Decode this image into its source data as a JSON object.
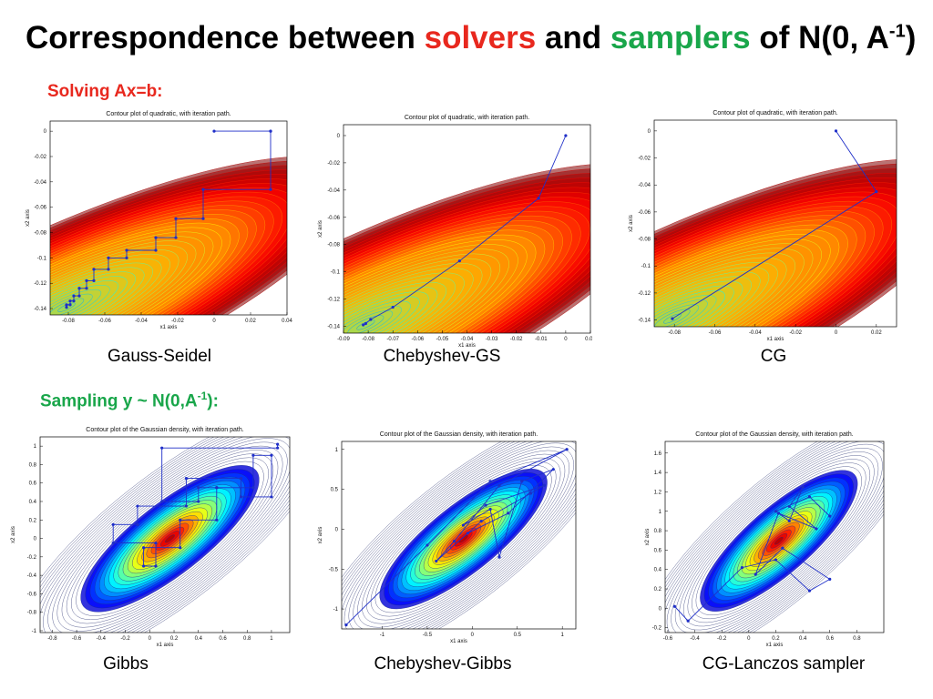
{
  "title": {
    "prefix": "Correspondence between ",
    "solvers": "solvers",
    "middle": " and ",
    "samplers": "samplers",
    "suffix": " of N(0, A",
    "sup": "-1",
    "close": ")",
    "colors": {
      "solvers": "#e8281e",
      "samplers": "#19a64a"
    }
  },
  "sections": {
    "solving": "Solving  Ax=b:",
    "sampling_prefix": "Sampling  y ~ N(0,A",
    "sampling_sup": "-1",
    "sampling_suffix": "):"
  },
  "captions": {
    "gauss_seidel": "Gauss-Seidel",
    "chebyshev_gs": "Chebyshev-GS",
    "cg": "CG",
    "gibbs": "Gibbs",
    "chebyshev_gibbs": "Chebyshev-Gibbs",
    "cg_lanczos": "CG-Lanczos sampler"
  },
  "panels": [
    {
      "id": "gs",
      "title": "Contour plot of quadratic, with iteration path.",
      "xlabel": "x1 axis",
      "ylabel": "x2 axis",
      "kind": "quadratic",
      "xlim": [
        -0.09,
        0.04
      ],
      "ylim": [
        -0.145,
        0.008
      ],
      "xticks": [
        "-0.08",
        "-0.06",
        "-0.04",
        "-0.02",
        "0",
        "0.02",
        "0.04"
      ],
      "xtick_vals": [
        -0.08,
        -0.06,
        -0.04,
        -0.02,
        0,
        0.02,
        0.04
      ],
      "yticks": [
        "0",
        "-0.02",
        "-0.04",
        "-0.06",
        "-0.08",
        "-0.1",
        "-0.12",
        "-0.14"
      ],
      "ytick_vals": [
        0,
        -0.02,
        -0.04,
        -0.06,
        -0.08,
        -0.1,
        -0.12,
        -0.14
      ],
      "path": [
        [
          0.031,
          0
        ],
        [
          0,
          0
        ],
        [
          0.031,
          0
        ],
        [
          0.031,
          -0.046
        ],
        [
          -0.006,
          -0.046
        ],
        [
          -0.006,
          -0.069
        ],
        [
          -0.021,
          -0.069
        ],
        [
          -0.021,
          -0.084
        ],
        [
          -0.032,
          -0.084
        ],
        [
          -0.032,
          -0.094
        ],
        [
          -0.048,
          -0.094
        ],
        [
          -0.048,
          -0.1
        ],
        [
          -0.058,
          -0.1
        ],
        [
          -0.058,
          -0.109
        ],
        [
          -0.066,
          -0.109
        ],
        [
          -0.066,
          -0.118
        ],
        [
          -0.07,
          -0.118
        ],
        [
          -0.07,
          -0.124
        ],
        [
          -0.074,
          -0.124
        ],
        [
          -0.074,
          -0.13
        ],
        [
          -0.077,
          -0.13
        ],
        [
          -0.077,
          -0.134
        ],
        [
          -0.079,
          -0.134
        ],
        [
          -0.079,
          -0.137
        ],
        [
          -0.081,
          -0.137
        ],
        [
          -0.081,
          -0.139
        ]
      ]
    },
    {
      "id": "chgs",
      "title": "Contour plot of quadratic, with iteration path.",
      "xlabel": "x1 axis",
      "ylabel": "x2 axis",
      "kind": "quadratic",
      "xlim": [
        -0.09,
        0.01
      ],
      "ylim": [
        -0.145,
        0.008
      ],
      "xticks": [
        "-0.09",
        "-0.08",
        "-0.07",
        "-0.06",
        "-0.05",
        "-0.04",
        "-0.03",
        "-0.02",
        "-0.01",
        "0",
        "0.01"
      ],
      "xtick_vals": [
        -0.09,
        -0.08,
        -0.07,
        -0.06,
        -0.05,
        -0.04,
        -0.03,
        -0.02,
        -0.01,
        0,
        0.01
      ],
      "yticks": [
        "0",
        "-0.02",
        "-0.04",
        "-0.06",
        "-0.08",
        "-0.1",
        "-0.12",
        "-0.14"
      ],
      "ytick_vals": [
        0,
        -0.02,
        -0.04,
        -0.06,
        -0.08,
        -0.1,
        -0.12,
        -0.14
      ],
      "path": [
        [
          0,
          0
        ],
        [
          -0.011,
          -0.046
        ],
        [
          -0.043,
          -0.092
        ],
        [
          -0.07,
          -0.126
        ],
        [
          -0.079,
          -0.135
        ],
        [
          -0.081,
          -0.138
        ],
        [
          -0.082,
          -0.139
        ]
      ]
    },
    {
      "id": "cg",
      "title": "Contour plot of quadratic, with iteration path.",
      "xlabel": "x1 axis",
      "ylabel": "x2 axis",
      "kind": "quadratic",
      "xlim": [
        -0.09,
        0.03
      ],
      "ylim": [
        -0.145,
        0.008
      ],
      "xticks": [
        "-0.08",
        "-0.06",
        "-0.04",
        "-0.02",
        "0",
        "0.02"
      ],
      "xtick_vals": [
        -0.08,
        -0.06,
        -0.04,
        -0.02,
        0,
        0.02
      ],
      "yticks": [
        "0",
        "-0.02",
        "-0.04",
        "-0.06",
        "-0.08",
        "-0.1",
        "-0.12",
        "-0.14"
      ],
      "ytick_vals": [
        0,
        -0.02,
        -0.04,
        -0.06,
        -0.08,
        -0.1,
        -0.12,
        -0.14
      ],
      "path": [
        [
          0,
          0
        ],
        [
          0.02,
          -0.045
        ],
        [
          -0.081,
          -0.139
        ]
      ]
    },
    {
      "id": "gibbs",
      "title": "Contour plot of the Gaussian density, with iteration path.",
      "xlabel": "x1 axis",
      "ylabel": "x2 axis",
      "kind": "gaussian",
      "xlim": [
        -0.9,
        1.15
      ],
      "ylim": [
        -1.02,
        1.1
      ],
      "xticks": [
        "-0.8",
        "-0.6",
        "-0.4",
        "-0.2",
        "0",
        "0.2",
        "0.4",
        "0.6",
        "0.8",
        "1"
      ],
      "xtick_vals": [
        -0.8,
        -0.6,
        -0.4,
        -0.2,
        0,
        0.2,
        0.4,
        0.6,
        0.8,
        1
      ],
      "yticks": [
        "1",
        "0.8",
        "0.6",
        "0.4",
        "0.2",
        "0",
        "-0.2",
        "-0.4",
        "-0.6",
        "-0.8",
        "-1"
      ],
      "ytick_vals": [
        1,
        0.8,
        0.6,
        0.4,
        0.2,
        0,
        -0.2,
        -0.4,
        -0.6,
        -0.8,
        -1
      ],
      "path": [
        [
          1.05,
          1.02
        ],
        [
          1.05,
          0.98
        ],
        [
          0.1,
          0.98
        ],
        [
          0.1,
          0.4
        ],
        [
          0.4,
          0.4
        ],
        [
          0.4,
          0.55
        ],
        [
          0.55,
          0.55
        ],
        [
          0.55,
          0.2
        ],
        [
          0.25,
          0.2
        ],
        [
          0.25,
          -0.1
        ],
        [
          -0.05,
          -0.1
        ],
        [
          -0.05,
          -0.3
        ],
        [
          0.05,
          -0.3
        ],
        [
          0.05,
          -0.05
        ],
        [
          -0.3,
          -0.05
        ],
        [
          -0.3,
          0.15
        ],
        [
          -0.1,
          0.15
        ],
        [
          -0.1,
          0.35
        ],
        [
          0.3,
          0.35
        ],
        [
          0.3,
          0.65
        ],
        [
          0.75,
          0.65
        ],
        [
          0.75,
          0.45
        ],
        [
          1.0,
          0.45
        ],
        [
          1.0,
          0.9
        ],
        [
          0.85,
          0.9
        ],
        [
          0.85,
          0.55
        ],
        [
          0.55,
          0.55
        ]
      ]
    },
    {
      "id": "chgibbs",
      "title": "Contour plot of the Gaussian density, with iteration path.",
      "xlabel": "x1 axis",
      "ylabel": "x2 axis",
      "kind": "gaussian",
      "xlim": [
        -1.45,
        1.15
      ],
      "ylim": [
        -1.25,
        1.1
      ],
      "xticks": [
        "-1",
        "-0.5",
        "0",
        "0.5",
        "1"
      ],
      "xtick_vals": [
        -1,
        -0.5,
        0,
        0.5,
        1
      ],
      "yticks": [
        "1",
        "0.5",
        "0",
        "-0.5",
        "-1"
      ],
      "ytick_vals": [
        1,
        0.5,
        0,
        -0.5,
        -1
      ],
      "path": [
        [
          -1.4,
          -1.2
        ],
        [
          -0.5,
          -0.2
        ],
        [
          0.2,
          0.6
        ],
        [
          1.05,
          1.0
        ],
        [
          0.3,
          0.55
        ],
        [
          -0.2,
          -0.15
        ],
        [
          -0.4,
          -0.4
        ],
        [
          0.1,
          0.1
        ],
        [
          0.65,
          0.45
        ],
        [
          0.8,
          0.55
        ],
        [
          0.15,
          0.3
        ],
        [
          -0.1,
          0.05
        ],
        [
          0.2,
          0.25
        ],
        [
          0.3,
          -0.35
        ],
        [
          0.55,
          0.6
        ],
        [
          0.9,
          0.75
        ],
        [
          0.4,
          0.2
        ],
        [
          -0.05,
          -0.05
        ]
      ]
    },
    {
      "id": "cglanczos",
      "title": "Contour plot of the Gaussian density, with iteration path.",
      "xlabel": "x1 axis",
      "ylabel": "x2 axis",
      "kind": "gaussian",
      "xlim": [
        -0.62,
        1.0
      ],
      "ylim": [
        -0.25,
        1.72
      ],
      "xticks": [
        "-0.6",
        "-0.4",
        "-0.2",
        "0",
        "0.2",
        "0.4",
        "0.6",
        "0.8"
      ],
      "xtick_vals": [
        -0.6,
        -0.4,
        -0.2,
        0,
        0.2,
        0.4,
        0.6,
        0.8
      ],
      "yticks": [
        "1.6",
        "1.4",
        "1.2",
        "1",
        "0.8",
        "0.6",
        "0.4",
        "0.2",
        "0",
        "-0.2"
      ],
      "ytick_vals": [
        1.6,
        1.4,
        1.2,
        1,
        0.8,
        0.6,
        0.4,
        0.2,
        0,
        -0.2
      ],
      "path": [
        [
          -0.55,
          0.02
        ],
        [
          -0.45,
          -0.13
        ],
        [
          -0.05,
          0.42
        ],
        [
          0.2,
          0.5
        ],
        [
          0.45,
          0.18
        ],
        [
          0.6,
          0.3
        ],
        [
          0.25,
          0.62
        ],
        [
          0.05,
          0.35
        ],
        [
          0.22,
          0.98
        ],
        [
          0.5,
          0.82
        ],
        [
          0.3,
          1.05
        ],
        [
          0.4,
          1.25
        ],
        [
          0.3,
          0.9
        ],
        [
          0.2,
          1.0
        ],
        [
          0.45,
          1.15
        ],
        [
          0.6,
          0.95
        ]
      ]
    }
  ]
}
